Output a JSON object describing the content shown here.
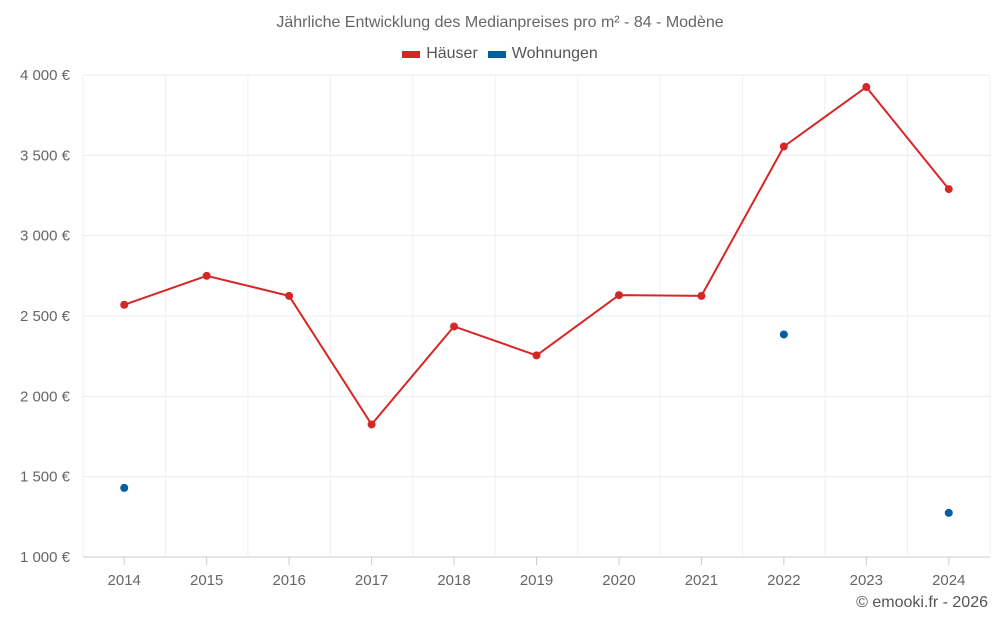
{
  "chart_data": {
    "type": "line",
    "title": "Jährliche Entwicklung des Medianpreises pro m² - 84 - Modène",
    "categories": [
      "2014",
      "2015",
      "2016",
      "2017",
      "2018",
      "2019",
      "2020",
      "2021",
      "2022",
      "2023",
      "2024"
    ],
    "series": [
      {
        "name": "Häuser",
        "color": "#d62728",
        "style": "line-markers",
        "values": [
          2570,
          2750,
          2625,
          1825,
          2435,
          2255,
          2630,
          2625,
          3555,
          3925,
          3290
        ]
      },
      {
        "name": "Wohnungen",
        "color": "#005f9e",
        "style": "markers",
        "values": [
          1430,
          null,
          null,
          null,
          null,
          null,
          null,
          null,
          2385,
          null,
          1275
        ]
      }
    ],
    "y_ticks": [
      1000,
      1500,
      2000,
      2500,
      3000,
      3500,
      4000
    ],
    "y_tick_labels": [
      "1 000 €",
      "1 500 €",
      "2 000 €",
      "2 500 €",
      "3 000 €",
      "3 500 €",
      "4 000 €"
    ],
    "ylim": [
      1000,
      4000
    ],
    "xlabel": "",
    "ylabel": "",
    "grid": true,
    "legend_position": "top-center"
  },
  "credit": "© emooki.fr - 2026"
}
